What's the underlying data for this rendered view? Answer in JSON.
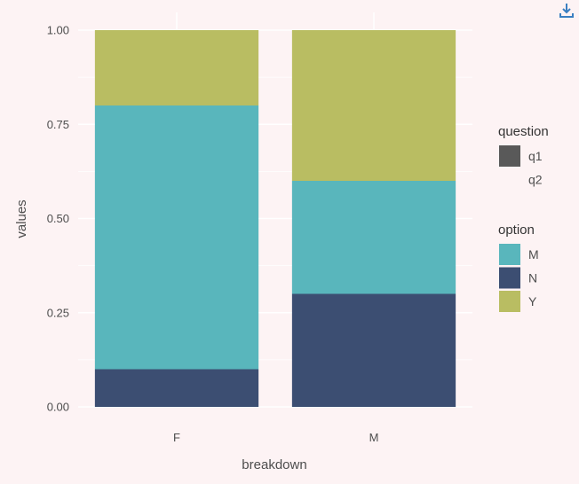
{
  "chart_data": {
    "type": "bar",
    "stacked": true,
    "categories": [
      "F",
      "M"
    ],
    "series": [
      {
        "name": "N",
        "values": [
          0.1,
          0.3
        ],
        "color": "#3c4e72"
      },
      {
        "name": "M",
        "values": [
          0.7,
          0.3
        ],
        "color": "#59b6bc"
      },
      {
        "name": "Y",
        "values": [
          0.2,
          0.4
        ],
        "color": "#b9bd62"
      }
    ],
    "xlabel": "breakdown",
    "ylabel": "values",
    "ylim": [
      0,
      1
    ],
    "yticks": [
      "0.00",
      "0.25",
      "0.50",
      "0.75",
      "1.00"
    ],
    "grid": true,
    "legend_position": "right",
    "legends": [
      {
        "title": "question",
        "entries": [
          {
            "label": "q1",
            "color": "#595959"
          },
          {
            "label": "q2",
            "color": null
          }
        ]
      },
      {
        "title": "option",
        "entries": [
          {
            "label": "M",
            "color": "#59b6bc"
          },
          {
            "label": "N",
            "color": "#3c4e72"
          },
          {
            "label": "Y",
            "color": "#b9bd62"
          }
        ]
      }
    ]
  },
  "toolbar": {
    "download_icon": "download-icon",
    "color": "#3a7fc1"
  }
}
